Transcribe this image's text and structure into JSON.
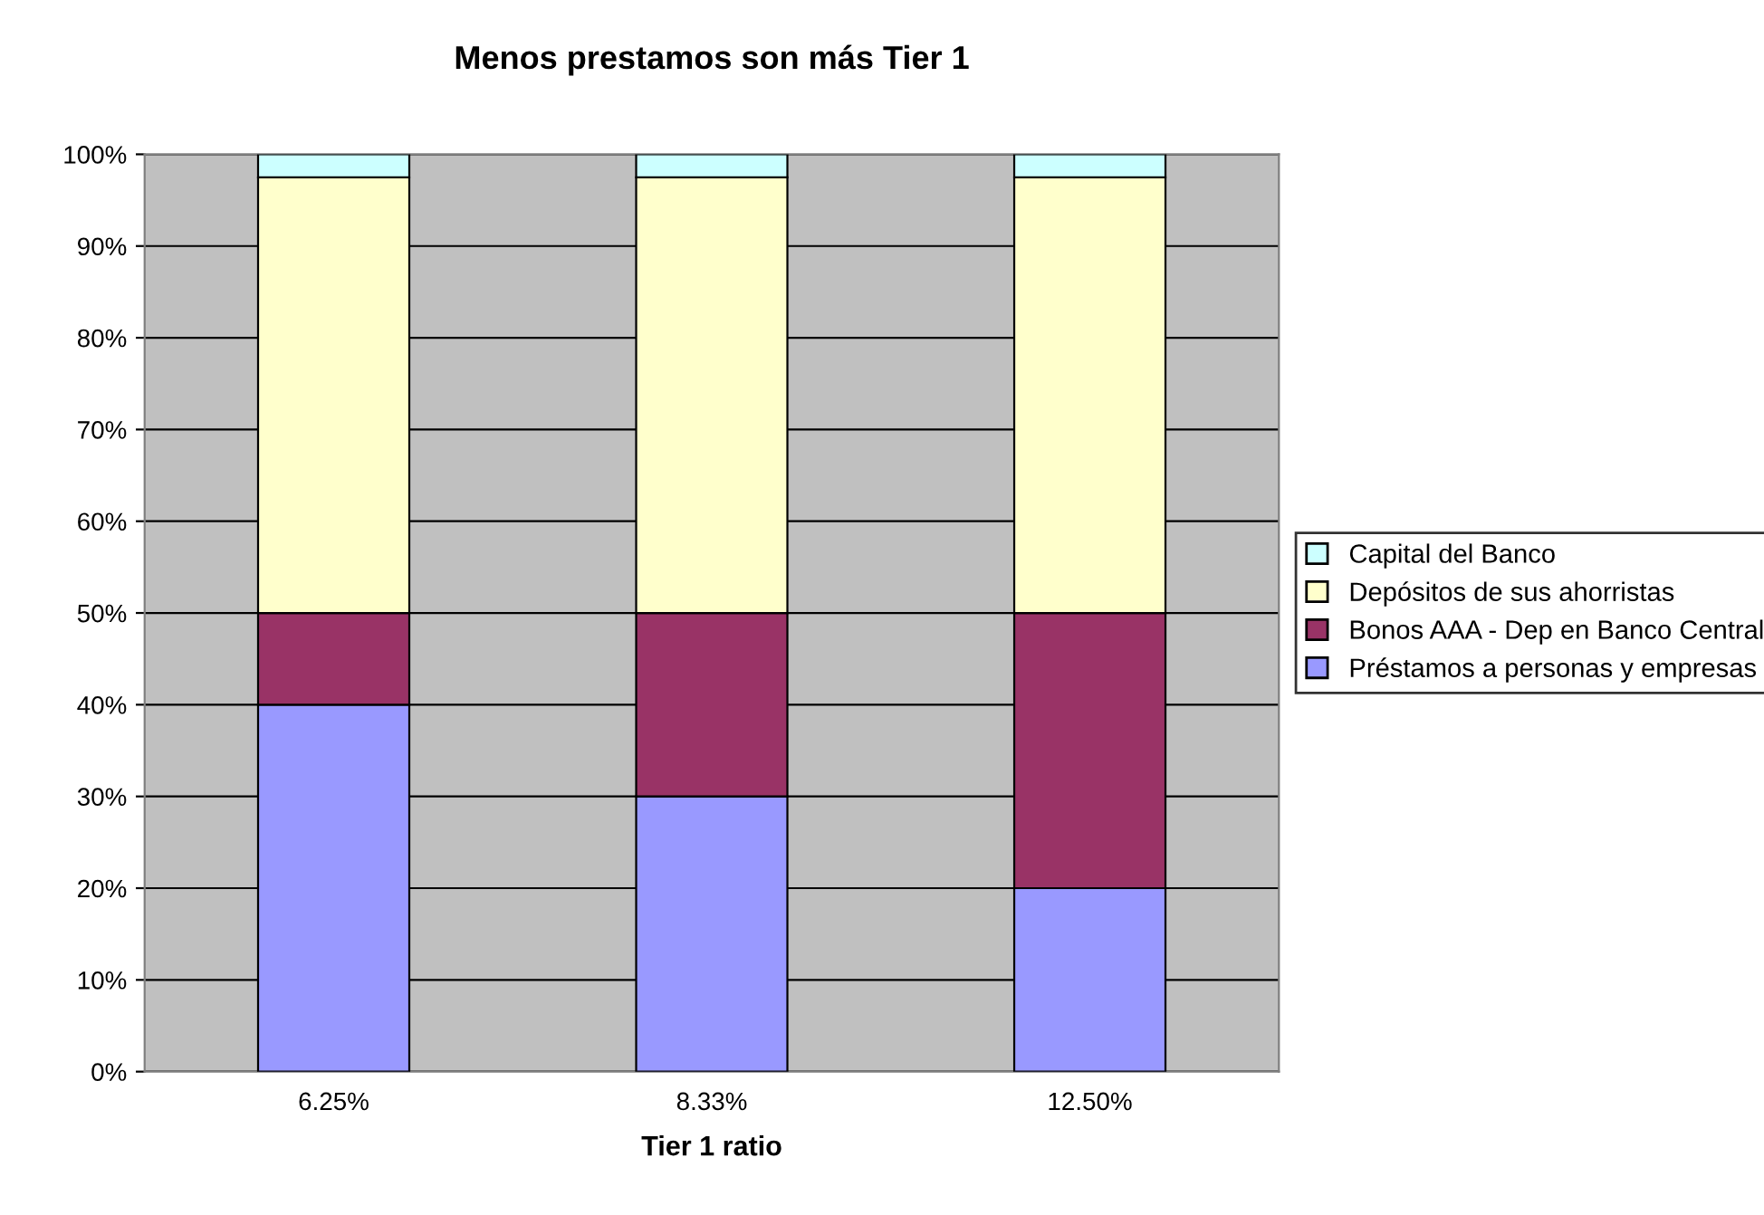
{
  "chart_data": {
    "type": "bar",
    "title": "Menos prestamos son más Tier 1",
    "xlabel": "Tier 1 ratio",
    "stacked": true,
    "categories": [
      "6.25%",
      "8.33%",
      "12.50%"
    ],
    "series": [
      {
        "name": "Préstamos a personas y empresas",
        "color": "#9999ff",
        "values": [
          40,
          30,
          20
        ]
      },
      {
        "name": "Bonos AAA - Dep en Banco Central",
        "color": "#993366",
        "values": [
          10,
          20,
          30
        ]
      },
      {
        "name": "Depósitos de sus ahorristas",
        "color": "#ffffcc",
        "values": [
          47.5,
          47.5,
          47.5
        ]
      },
      {
        "name": "Capital del Banco",
        "color": "#ccffff",
        "values": [
          2.5,
          2.5,
          2.5
        ]
      }
    ],
    "ylim": [
      0,
      100
    ],
    "yticks": [
      {
        "value": 0,
        "label": "0%"
      },
      {
        "value": 10,
        "label": "10%"
      },
      {
        "value": 20,
        "label": "20%"
      },
      {
        "value": 30,
        "label": "30%"
      },
      {
        "value": 40,
        "label": "40%"
      },
      {
        "value": 50,
        "label": "50%"
      },
      {
        "value": 60,
        "label": "60%"
      },
      {
        "value": 70,
        "label": "70%"
      },
      {
        "value": 80,
        "label": "80%"
      },
      {
        "value": 90,
        "label": "90%"
      },
      {
        "value": 100,
        "label": "100%"
      }
    ],
    "grid": "y",
    "legend": "right"
  }
}
